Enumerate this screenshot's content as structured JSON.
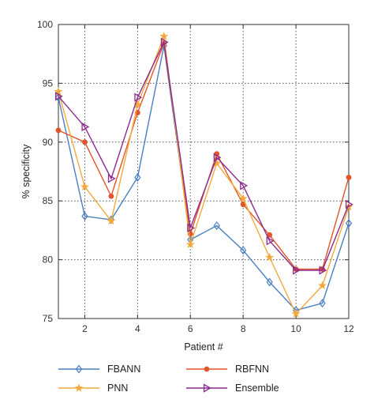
{
  "chart_data": {
    "type": "line",
    "xlabel": "Patient #",
    "ylabel": "% specificity",
    "xlim": [
      1,
      12
    ],
    "ylim": [
      75,
      100
    ],
    "xticks": [
      2,
      4,
      6,
      8,
      10,
      12
    ],
    "yticks": [
      75,
      80,
      85,
      90,
      95,
      100
    ],
    "grid": true,
    "grid_style": "dotted",
    "legend_position": "bottom",
    "x": [
      1,
      2,
      3,
      4,
      5,
      6,
      7,
      8,
      9,
      10,
      11,
      12
    ],
    "series": [
      {
        "name": "FBANN",
        "color": "#4a7fc1",
        "marker": "diamond",
        "values": [
          93.8,
          83.7,
          83.4,
          87.0,
          98.2,
          81.7,
          82.9,
          80.8,
          78.1,
          75.7,
          76.3,
          83.1
        ]
      },
      {
        "name": "RBFNN",
        "color": "#e2542b",
        "marker": "circle",
        "values": [
          91.0,
          90.0,
          85.4,
          92.5,
          98.4,
          82.2,
          89.0,
          84.7,
          82.1,
          79.2,
          79.2,
          87.0
        ]
      },
      {
        "name": "PNN",
        "color": "#f2a93b",
        "marker": "star",
        "values": [
          94.3,
          86.2,
          83.3,
          93.2,
          99.0,
          81.3,
          88.2,
          85.2,
          80.2,
          75.4,
          77.8,
          84.5
        ]
      },
      {
        "name": "Ensemble",
        "color": "#8b2a8f",
        "marker": "triangle-right",
        "values": [
          93.9,
          91.3,
          86.9,
          93.8,
          98.5,
          82.7,
          88.7,
          86.3,
          81.6,
          79.1,
          79.1,
          84.7
        ]
      }
    ]
  }
}
